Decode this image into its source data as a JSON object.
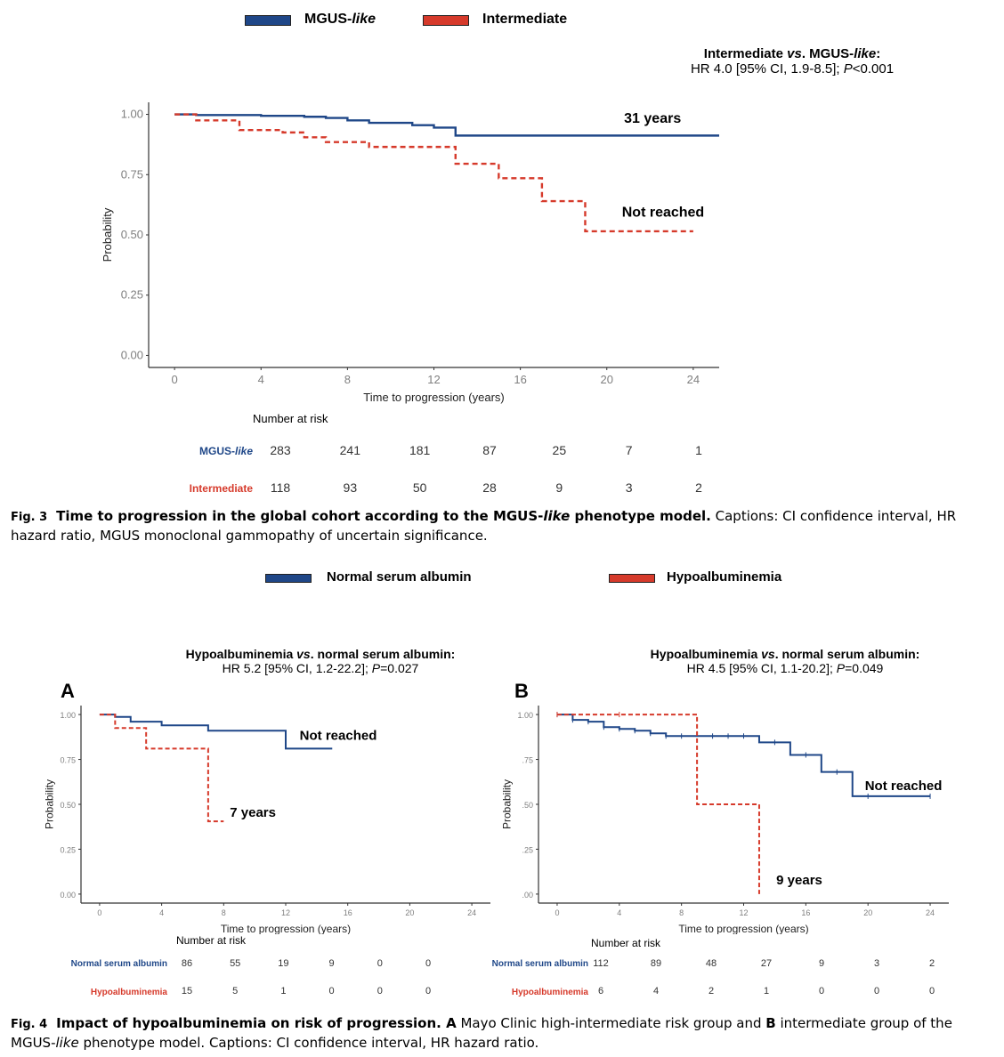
{
  "colors": {
    "blue": "#1f4788",
    "red": "#d63a2b",
    "axis_text": "#7f7f7f",
    "caption_text": "#000000"
  },
  "fig3": {
    "legend": [
      {
        "label_main": "MGUS-",
        "label_italic": "like",
        "color": "#1f4788"
      },
      {
        "label_main": "Intermediate",
        "label_italic": "",
        "color": "#d63a2b"
      }
    ],
    "hr_line1_a": "Intermediate ",
    "hr_line1_i": "vs",
    "hr_line1_b": ". MGUS-",
    "hr_line1_i2": "like",
    "hr_line1_c": ":",
    "hr_line2_a": "HR 4.0 [95% CI, 1.9-8.5]; ",
    "hr_line2_i": "P",
    "hr_line2_b": "<0.001",
    "risk_title": "Number at risk",
    "risk_rows": [
      {
        "label": "MGUS-like",
        "values": [
          "283",
          "241",
          "181",
          "87",
          "25",
          "7",
          "1"
        ],
        "color": "#1f4788"
      },
      {
        "label": "Intermediate",
        "values": [
          "118",
          "93",
          "50",
          "28",
          "9",
          "3",
          "2"
        ],
        "color": "#d63a2b"
      }
    ],
    "caption_fig": "Fig. 3",
    "caption_bold_a": "Time to progression in the global cohort according to the MGUS-",
    "caption_bold_i": "like",
    "caption_bold_b": " phenotype model.",
    "caption_rest": " Captions: CI confidence interval, HR hazard ratio, MGUS monoclonal gammopathy of uncertain significance."
  },
  "fig4": {
    "legend": [
      {
        "label": "Normal serum albumin",
        "color": "#1f4788"
      },
      {
        "label": "Hypoalbuminemia",
        "color": "#d63a2b"
      }
    ],
    "panels": [
      {
        "letter": "A",
        "hr_line1_a": "Hypoalbuminemia ",
        "hr_line1_i": "vs",
        "hr_line1_b": ". normal serum albumin:",
        "hr_line2_a": "HR 5.2 [95% CI, 1.2-22.2]; ",
        "hr_line2_i": "P",
        "hr_line2_b": "=0.027",
        "risk_title": "Number at risk",
        "risk_rows": [
          {
            "label": "Normal serum albumin",
            "values": [
              "86",
              "55",
              "19",
              "9",
              "0",
              "0"
            ],
            "color": "#1f4788"
          },
          {
            "label": "Hypoalbuminemia",
            "values": [
              "15",
              "5",
              "1",
              "0",
              "0",
              "0"
            ],
            "color": "#d63a2b"
          }
        ]
      },
      {
        "letter": "B",
        "hr_line1_a": "Hypoalbuminemia ",
        "hr_line1_i": "vs",
        "hr_line1_b": ". normal serum albumin:",
        "hr_line2_a": "HR 4.5 [95% CI, 1.1-20.2]; ",
        "hr_line2_i": "P",
        "hr_line2_b": "=0.049",
        "risk_title": "Number at risk",
        "risk_rows": [
          {
            "label": "Normal serum albumin",
            "values": [
              "112",
              "89",
              "48",
              "27",
              "9",
              "3",
              "2"
            ],
            "color": "#1f4788"
          },
          {
            "label": "Hypoalbuminemia",
            "values": [
              "6",
              "4",
              "2",
              "1",
              "0",
              "0",
              "0"
            ],
            "color": "#d63a2b"
          }
        ]
      }
    ],
    "caption_fig": "Fig. 4",
    "caption_bold": "Impact of hypoalbuminemia on risk of progression.",
    "caption_a_bold": " A",
    "caption_a": " Mayo Clinic high-intermediate risk group and ",
    "caption_b_bold": "B",
    "caption_b": " intermediate group of the MGUS-",
    "caption_b_i": "like",
    "caption_b_rest": " phenotype model. Captions: CI confidence interval, HR hazard ratio."
  },
  "chart_data": [
    {
      "type": "line",
      "id": "fig3",
      "title": "Time to progression in the global cohort",
      "xlabel": "Time to progression (years)",
      "ylabel": "Probability",
      "xlim": [
        -1.2,
        25.2
      ],
      "ylim": [
        -0.05,
        1.05
      ],
      "xticks": [
        0,
        4,
        8,
        12,
        16,
        20,
        24
      ],
      "yticks": [
        0,
        0.25,
        0.5,
        0.75,
        1.0
      ],
      "ytick_labels": [
        "0.00",
        "0.25",
        "0.50",
        "0.75",
        "1.00"
      ],
      "grid": false,
      "legend_position": "top",
      "series": [
        {
          "name": "MGUS-like",
          "style": "solid",
          "color": "#1f4788",
          "x": [
            0,
            1,
            4,
            6,
            7,
            8,
            9,
            11,
            12,
            13,
            25.2
          ],
          "y": [
            1.0,
            0.997,
            0.994,
            0.99,
            0.985,
            0.975,
            0.965,
            0.955,
            0.945,
            0.912,
            0.912
          ]
        },
        {
          "name": "Intermediate",
          "style": "dashed",
          "color": "#d63a2b",
          "x": [
            0,
            1,
            3,
            5,
            6,
            7,
            9,
            13,
            15,
            17,
            19,
            24
          ],
          "y": [
            1.0,
            0.975,
            0.935,
            0.925,
            0.905,
            0.885,
            0.865,
            0.795,
            0.735,
            0.64,
            0.515,
            0.515
          ]
        }
      ],
      "annotations": [
        {
          "text": "31 years",
          "x": 20.8,
          "y": 0.965
        },
        {
          "text": "Not reached",
          "x": 20.7,
          "y": 0.575
        }
      ]
    },
    {
      "type": "line",
      "id": "fig4a",
      "xlabel": "Time to progression (years)",
      "ylabel": "Probability",
      "xlim": [
        -1.2,
        25.2
      ],
      "ylim": [
        -0.05,
        1.05
      ],
      "xticks": [
        0,
        4,
        8,
        12,
        16,
        20,
        24
      ],
      "yticks": [
        0,
        0.25,
        0.5,
        0.75,
        1.0
      ],
      "ytick_labels": [
        "0.00",
        "0.25",
        "0.50",
        "0.75",
        "1.00"
      ],
      "grid": false,
      "series": [
        {
          "name": "Normal serum albumin",
          "style": "solid",
          "color": "#1f4788",
          "x": [
            0,
            1,
            2,
            4,
            7,
            12,
            15
          ],
          "y": [
            1.0,
            0.987,
            0.96,
            0.94,
            0.91,
            0.81,
            0.81
          ]
        },
        {
          "name": "Hypoalbuminemia",
          "style": "dashed",
          "color": "#d63a2b",
          "x": [
            0,
            1,
            3,
            7,
            8
          ],
          "y": [
            1.0,
            0.925,
            0.81,
            0.405,
            0.405
          ]
        }
      ],
      "annotations": [
        {
          "text": "Not reached",
          "x": 12.9,
          "y": 0.86
        },
        {
          "text": "7 years",
          "x": 8.4,
          "y": 0.43
        }
      ]
    },
    {
      "type": "line",
      "id": "fig4b",
      "xlabel": "Time to progression (years)",
      "ylabel": "Probability",
      "xlim": [
        -1.2,
        25.2
      ],
      "ylim": [
        -0.05,
        1.05
      ],
      "xticks": [
        0,
        4,
        8,
        12,
        16,
        20,
        24
      ],
      "yticks": [
        0,
        0.25,
        0.5,
        0.75,
        1.0
      ],
      "ytick_labels": [
        ".00",
        ".25",
        ".50",
        ".75",
        "1.00"
      ],
      "grid": false,
      "series": [
        {
          "name": "Normal serum albumin",
          "style": "solid",
          "color": "#1f4788",
          "x": [
            0,
            1,
            2,
            3,
            4,
            5,
            6,
            7,
            13,
            15,
            17,
            19,
            24
          ],
          "y": [
            1.0,
            0.97,
            0.96,
            0.93,
            0.92,
            0.91,
            0.895,
            0.88,
            0.845,
            0.775,
            0.68,
            0.545,
            0.545
          ],
          "censor_x": [
            0,
            1,
            2,
            3,
            4,
            5,
            6,
            7,
            8,
            10,
            11,
            12,
            14,
            16,
            18,
            20,
            24
          ]
        },
        {
          "name": "Hypoalbuminemia",
          "style": "dashed",
          "color": "#d63a2b",
          "x": [
            0,
            9,
            13,
            13
          ],
          "y": [
            1.0,
            0.5,
            0.0,
            0.0
          ],
          "censor_x": [
            0,
            4
          ]
        }
      ],
      "annotations": [
        {
          "text": "Not reached",
          "x": 19.8,
          "y": 0.58
        },
        {
          "text": "9 years",
          "x": 14.1,
          "y": 0.055
        }
      ]
    }
  ]
}
